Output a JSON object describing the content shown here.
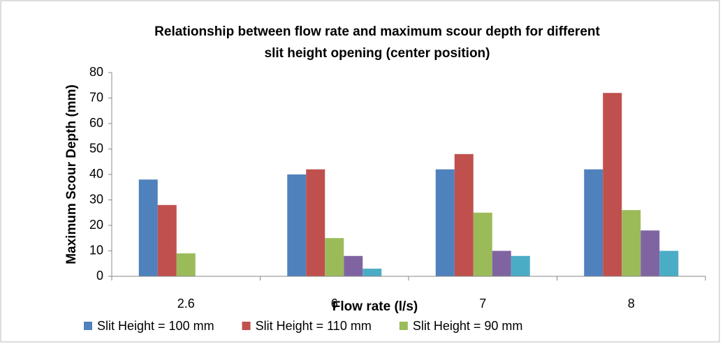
{
  "chart_data": {
    "type": "bar",
    "title": [
      "Relationship between flow rate  and maximum scour depth for different",
      "slit height opening (center position)"
    ],
    "x_label": "Flow rate  (l/s)",
    "y_label": "Maximum Scour Depth (mm)",
    "categories": [
      "2.6",
      "6",
      "7",
      "8"
    ],
    "series": [
      {
        "name": "Slit Height = 100 mm",
        "color": "#4f81bd",
        "values": [
          38,
          40,
          42,
          42
        ]
      },
      {
        "name": "Slit Height = 110 mm",
        "color": "#c0504d",
        "values": [
          28,
          42,
          48,
          72
        ]
      },
      {
        "name": "Slit Height = 90 mm",
        "color": "#9bbb59",
        "values": [
          9,
          15,
          25,
          26
        ]
      },
      {
        "color": "#8064a2",
        "values": [
          null,
          8,
          10,
          18
        ]
      },
      {
        "color": "#4bacc6",
        "values": [
          null,
          3,
          8,
          10
        ]
      }
    ],
    "ylim": [
      0,
      80
    ],
    "yticks": [
      0,
      10,
      20,
      30,
      40,
      50,
      60,
      70,
      80
    ],
    "grid": false,
    "legend": "bottom"
  }
}
